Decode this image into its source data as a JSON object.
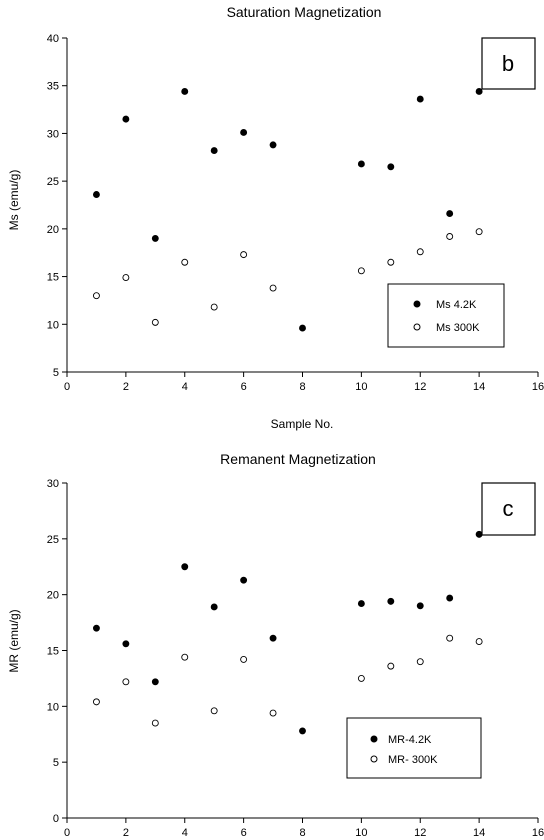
{
  "chart_data": [
    {
      "type": "scatter",
      "title": "Saturation Magnetization",
      "panel_label": "b",
      "xlabel": "Sample No.",
      "ylabel": "Ms (emu/g)",
      "xlim": [
        0,
        16
      ],
      "ylim": [
        5,
        40
      ],
      "x_ticks": [
        0,
        2,
        4,
        6,
        8,
        10,
        12,
        14,
        16
      ],
      "y_ticks": [
        5,
        10,
        15,
        20,
        25,
        30,
        35,
        40
      ],
      "grid": false,
      "legend_position": "bottom-right",
      "series": [
        {
          "name": "Ms 4.2K",
          "marker": "filled-circle",
          "color": "#000000",
          "points": [
            [
              1,
              23.6
            ],
            [
              2,
              31.5
            ],
            [
              3,
              19.0
            ],
            [
              4,
              34.4
            ],
            [
              5,
              28.2
            ],
            [
              6,
              30.1
            ],
            [
              7,
              28.8
            ],
            [
              8,
              9.6
            ],
            [
              10,
              26.8
            ],
            [
              11,
              26.5
            ],
            [
              12,
              33.6
            ],
            [
              13,
              21.6
            ],
            [
              14,
              34.4
            ]
          ]
        },
        {
          "name": "Ms 300K",
          "marker": "open-circle",
          "color": "#000000",
          "points": [
            [
              1,
              13.0
            ],
            [
              2,
              14.9
            ],
            [
              3,
              10.2
            ],
            [
              4,
              16.5
            ],
            [
              5,
              11.8
            ],
            [
              6,
              17.3
            ],
            [
              7,
              13.8
            ],
            [
              10,
              15.6
            ],
            [
              11,
              16.5
            ],
            [
              12,
              17.6
            ],
            [
              13,
              19.2
            ],
            [
              14,
              19.7
            ]
          ]
        }
      ]
    },
    {
      "type": "scatter",
      "title": "Remanent Magnetization",
      "panel_label": "c",
      "xlabel": "",
      "ylabel": "MR (emu/g)",
      "xlim": [
        0,
        16
      ],
      "ylim": [
        0,
        30
      ],
      "x_ticks": [
        0,
        2,
        4,
        6,
        8,
        10,
        12,
        14,
        16
      ],
      "y_ticks": [
        0,
        5,
        10,
        15,
        20,
        25,
        30
      ],
      "grid": false,
      "legend_position": "bottom-right",
      "series": [
        {
          "name": "MR-4.2K",
          "marker": "filled-circle",
          "color": "#000000",
          "points": [
            [
              1,
              17.0
            ],
            [
              2,
              15.6
            ],
            [
              3,
              12.2
            ],
            [
              4,
              22.5
            ],
            [
              5,
              18.9
            ],
            [
              6,
              21.3
            ],
            [
              7,
              16.1
            ],
            [
              8,
              7.8
            ],
            [
              10,
              19.2
            ],
            [
              11,
              19.4
            ],
            [
              12,
              19.0
            ],
            [
              13,
              19.7
            ],
            [
              14,
              25.4
            ]
          ]
        },
        {
          "name": "MR- 300K",
          "marker": "open-circle",
          "color": "#000000",
          "points": [
            [
              1,
              10.4
            ],
            [
              2,
              12.2
            ],
            [
              3,
              8.5
            ],
            [
              4,
              14.4
            ],
            [
              5,
              9.6
            ],
            [
              6,
              14.2
            ],
            [
              7,
              9.4
            ],
            [
              10,
              12.5
            ],
            [
              11,
              13.6
            ],
            [
              12,
              14.0
            ],
            [
              13,
              16.1
            ],
            [
              14,
              15.8
            ]
          ]
        }
      ]
    }
  ]
}
